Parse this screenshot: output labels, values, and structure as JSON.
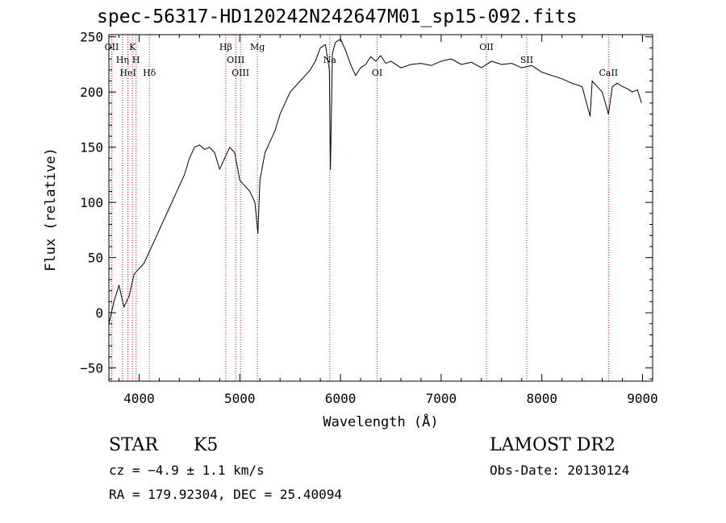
{
  "chart_data": {
    "type": "line",
    "title": "spec-56317-HD120242N242647M01_sp15-092.fits",
    "xlabel": "Wavelength (Å)",
    "ylabel": "Flux (relative)",
    "xlim": [
      3700,
      9100
    ],
    "ylim": [
      -62,
      252
    ],
    "x_ticks": [
      4000,
      5000,
      6000,
      7000,
      8000,
      9000
    ],
    "y_ticks": [
      -50,
      0,
      50,
      100,
      150,
      200,
      250
    ],
    "x_tick_labels": [
      "4000",
      "5000",
      "6000",
      "7000",
      "8000",
      "9000"
    ],
    "y_tick_labels": [
      "−50",
      "0",
      "50",
      "100",
      "150",
      "200",
      "250"
    ],
    "grid": false,
    "series": [
      {
        "color": "#000000",
        "x": [
          3700,
          3750,
          3800,
          3850,
          3900,
          3950,
          4000,
          4050,
          4100,
          4150,
          4200,
          4250,
          4300,
          4350,
          4400,
          4450,
          4500,
          4550,
          4600,
          4650,
          4700,
          4750,
          4800,
          4850,
          4900,
          4950,
          5000,
          5050,
          5100,
          5150,
          5180,
          5200,
          5250,
          5300,
          5350,
          5400,
          5450,
          5500,
          5550,
          5600,
          5650,
          5700,
          5750,
          5800,
          5850,
          5890,
          5900,
          5920,
          5950,
          6000,
          6050,
          6100,
          6150,
          6200,
          6250,
          6300,
          6350,
          6400,
          6450,
          6500,
          6600,
          6700,
          6800,
          6900,
          7000,
          7100,
          7200,
          7300,
          7400,
          7500,
          7600,
          7700,
          7800,
          7900,
          8000,
          8100,
          8200,
          8300,
          8400,
          8480,
          8500,
          8550,
          8600,
          8662,
          8700,
          8750,
          8800,
          8850,
          8900,
          8950,
          8990
        ],
        "y": [
          -10,
          10,
          25,
          5,
          15,
          35,
          40,
          45,
          55,
          65,
          75,
          85,
          95,
          105,
          115,
          125,
          140,
          150,
          152,
          148,
          150,
          145,
          130,
          140,
          150,
          145,
          120,
          115,
          110,
          100,
          72,
          120,
          145,
          155,
          165,
          180,
          190,
          200,
          205,
          210,
          215,
          220,
          228,
          240,
          243,
          220,
          130,
          235,
          245,
          248,
          238,
          225,
          215,
          222,
          225,
          232,
          228,
          233,
          226,
          228,
          222,
          225,
          226,
          224,
          228,
          230,
          225,
          227,
          222,
          228,
          225,
          226,
          222,
          224,
          218,
          215,
          212,
          208,
          205,
          178,
          210,
          205,
          200,
          180,
          205,
          208,
          205,
          203,
          200,
          202,
          190
        ]
      }
    ],
    "lines": [
      {
        "x": 3728,
        "label": "OII"
      },
      {
        "x": 3835,
        "label": "Hη"
      },
      {
        "x": 3889,
        "label": "HeI"
      },
      {
        "x": 3934,
        "label": "K"
      },
      {
        "x": 3970,
        "label": "H"
      },
      {
        "x": 4102,
        "label": "Hδ"
      },
      {
        "x": 4861,
        "label": "Hβ"
      },
      {
        "x": 4959,
        "label": "OIII"
      },
      {
        "x": 5007,
        "label": "OIII"
      },
      {
        "x": 5175,
        "label": "Mg"
      },
      {
        "x": 5894,
        "label": "Na"
      },
      {
        "x": 6364,
        "label": "OI"
      },
      {
        "x": 7450,
        "label": "OII"
      },
      {
        "x": 7850,
        "label": "SII"
      },
      {
        "x": 8662,
        "label": "CaII"
      }
    ]
  },
  "info": {
    "class": "STAR",
    "subclass": "K5",
    "survey": "LAMOST DR2",
    "cz": "cz = −4.9 ± 1.1 km/s",
    "obs_date": "Obs-Date: 20130124",
    "coords": "RA = 179.92304, DEC =  25.40094"
  }
}
